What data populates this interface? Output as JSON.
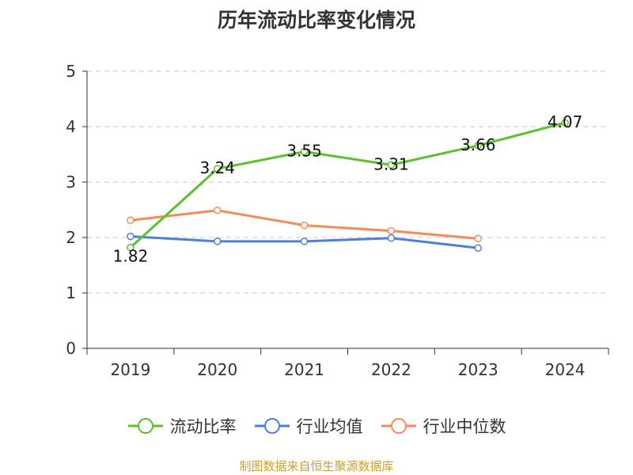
{
  "chart_data": {
    "type": "line",
    "title": "历年流动比率变化情况",
    "categories": [
      "2019",
      "2020",
      "2021",
      "2022",
      "2023",
      "2024"
    ],
    "ylim": [
      0,
      5
    ],
    "yticks": [
      "0",
      "1",
      "2",
      "3",
      "4",
      "5"
    ],
    "grid": true,
    "legend_position": "bottom",
    "series": [
      {
        "name": "流动比率",
        "color": "#5bc12a",
        "values": [
          1.82,
          3.24,
          3.55,
          3.31,
          3.66,
          4.07
        ],
        "labels": [
          "1.82",
          "3.24",
          "3.55",
          "3.31",
          "3.66",
          "4.07"
        ]
      },
      {
        "name": "行业均值",
        "color": "#4e7fd9",
        "values": [
          2.02,
          1.93,
          1.93,
          1.99,
          1.81,
          null
        ]
      },
      {
        "name": "行业中位数",
        "color": "#f58a5a",
        "values": [
          2.31,
          2.49,
          2.22,
          2.12,
          1.98,
          null
        ]
      }
    ]
  },
  "source": "制图数据来自恒生聚源数据库"
}
